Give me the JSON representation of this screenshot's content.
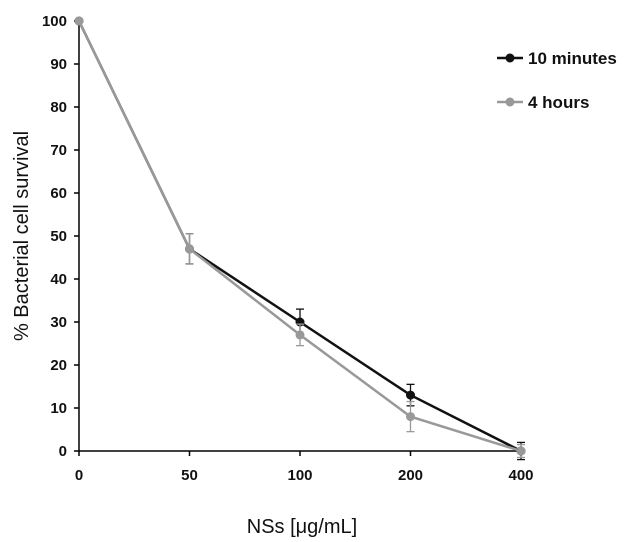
{
  "chart_data": {
    "type": "line",
    "title": "",
    "xlabel": "NSs [μg/mL]",
    "ylabel": "% Bacterial cell survival",
    "categories": [
      "0",
      "50",
      "100",
      "200",
      "400"
    ],
    "ylim": [
      0,
      100
    ],
    "yticks": [
      0,
      10,
      20,
      30,
      40,
      50,
      60,
      70,
      80,
      90,
      100
    ],
    "grid": false,
    "legend_position": "top-right",
    "series": [
      {
        "name": "10 minutes",
        "color": "#111111",
        "values": [
          100,
          47,
          30,
          13,
          0
        ],
        "errors": [
          0,
          3.5,
          3,
          2.5,
          2
        ]
      },
      {
        "name": "4 hours",
        "color": "#999999",
        "values": [
          100,
          47,
          27,
          8,
          0
        ],
        "errors": [
          0,
          3.5,
          2.5,
          3.5,
          1.5
        ]
      }
    ]
  }
}
